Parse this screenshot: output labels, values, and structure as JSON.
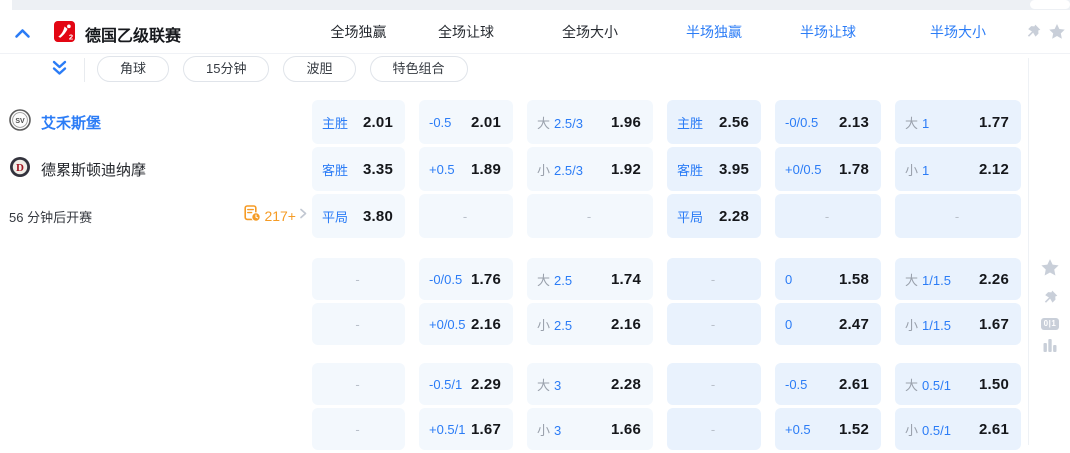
{
  "header": {
    "league": "德国乙级联赛",
    "columns": [
      {
        "label": "全场独赢",
        "active": false
      },
      {
        "label": "全场让球",
        "active": false
      },
      {
        "label": "全场大小",
        "active": false
      },
      {
        "label": "半场独赢",
        "active": true
      },
      {
        "label": "半场让球",
        "active": true
      },
      {
        "label": "半场大小",
        "active": true
      }
    ]
  },
  "tabs": [
    {
      "label": "角球"
    },
    {
      "label": "15分钟"
    },
    {
      "label": "波胆"
    },
    {
      "label": "特色组合"
    }
  ],
  "match": {
    "home_team": "艾禾斯堡",
    "away_team": "德累斯顿迪纳摩",
    "kickoff_text": "56 分钟后开赛",
    "markets_count": "217+"
  },
  "colors": {
    "accent": "#2b7cf6",
    "orange": "#f59b25",
    "value_text": "#15171b",
    "muted_label": "#9aa1ac",
    "icon_gray": "#c9cfd9"
  },
  "odds": {
    "groups": [
      {
        "rows": [
          [
            {
              "label": "主胜",
              "value": "2.01"
            },
            {
              "label": "-0.5",
              "value": "2.01"
            },
            {
              "prefix": "大",
              "label": "2.5/3",
              "value": "1.96"
            },
            {
              "label": "主胜",
              "value": "2.56"
            },
            {
              "label": "-0/0.5",
              "value": "2.13"
            },
            {
              "prefix": "大",
              "label": "1",
              "value": "1.77"
            }
          ],
          [
            {
              "label": "客胜",
              "value": "3.35"
            },
            {
              "label": "+0.5",
              "value": "1.89"
            },
            {
              "prefix": "小",
              "label": "2.5/3",
              "value": "1.92"
            },
            {
              "label": "客胜",
              "value": "3.95"
            },
            {
              "prefix": "",
              "label": "+0/0.5",
              "value": "1.78"
            },
            {
              "prefix": "小",
              "label": "1",
              "value": "2.12"
            }
          ],
          [
            {
              "label": "平局",
              "value": "3.80"
            },
            {
              "dash": true
            },
            {
              "dash": true
            },
            {
              "label": "平局",
              "value": "2.28"
            },
            {
              "dash": true
            },
            {
              "dash": true
            }
          ]
        ]
      },
      {
        "rows": [
          [
            {
              "dash": true
            },
            {
              "label": "-0/0.5",
              "value": "1.76"
            },
            {
              "prefix": "大",
              "label": "2.5",
              "value": "1.74"
            },
            {
              "dash": true
            },
            {
              "label": "0",
              "value": "1.58"
            },
            {
              "prefix": "大",
              "label": "1/1.5",
              "value": "2.26"
            }
          ],
          [
            {
              "dash": true
            },
            {
              "label": "+0/0.5",
              "value": "2.16"
            },
            {
              "prefix": "小",
              "label": "2.5",
              "value": "2.16"
            },
            {
              "dash": true
            },
            {
              "label": "0",
              "value": "2.47"
            },
            {
              "prefix": "小",
              "label": "1/1.5",
              "value": "1.67"
            }
          ]
        ]
      },
      {
        "rows": [
          [
            {
              "dash": true
            },
            {
              "label": "-0.5/1",
              "value": "2.29"
            },
            {
              "prefix": "大",
              "label": "3",
              "value": "2.28"
            },
            {
              "dash": true
            },
            {
              "label": "-0.5",
              "value": "2.61"
            },
            {
              "prefix": "大",
              "label": "0.5/1",
              "value": "1.50"
            }
          ],
          [
            {
              "dash": true
            },
            {
              "label": "+0.5/1",
              "value": "1.67"
            },
            {
              "prefix": "小",
              "label": "3",
              "value": "1.66"
            },
            {
              "dash": true
            },
            {
              "label": "+0.5",
              "value": "1.52"
            },
            {
              "prefix": "小",
              "label": "0.5/1",
              "value": "2.61"
            }
          ]
        ]
      }
    ]
  },
  "empty_cell_glyph": "-"
}
